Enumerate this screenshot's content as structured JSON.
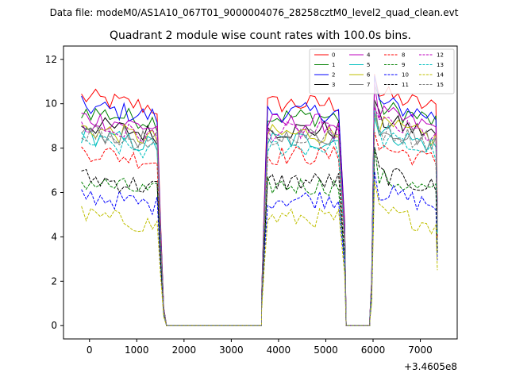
{
  "page": {
    "suptitle": "Data file: modeM0/AS1A10_067T01_9000004076_28258cztM0_level2_quad_clean.evt"
  },
  "chart_data": {
    "type": "line",
    "title": "Quadrant 2 module wise count rates with 100.0s bins.",
    "xlabel": "",
    "ylabel": "",
    "x_offset_label": "+3.4605e8",
    "xlim": [
      -550,
      7780
    ],
    "ylim": [
      -0.6,
      12.6
    ],
    "xticks": [
      0,
      1000,
      2000,
      3000,
      4000,
      5000,
      6000,
      7000
    ],
    "yticks": [
      0,
      2,
      4,
      6,
      8,
      10,
      12
    ],
    "segments": [
      {
        "x0": -170,
        "x1": 1430,
        "fall_x": [
          1500,
          1570,
          1630
        ]
      },
      {
        "x0": 3770,
        "x1": 5330,
        "rise_x": [
          3640,
          3700
        ],
        "fall_x": [
          5400,
          5430
        ]
      },
      {
        "x0": 6030,
        "x1": 7330,
        "rise_x": [
          5930,
          5970
        ]
      }
    ],
    "zero_ranges": [
      [
        1630,
        3640
      ],
      [
        5430,
        5930
      ]
    ],
    "series": [
      {
        "name": "0",
        "color": "#ff0000",
        "dashed": false,
        "base": 10.3
      },
      {
        "name": "1",
        "color": "#008000",
        "dashed": false,
        "base": 9.7
      },
      {
        "name": "2",
        "color": "#0000ff",
        "dashed": false,
        "base": 9.9
      },
      {
        "name": "3",
        "color": "#000000",
        "dashed": false,
        "base": 9.1
      },
      {
        "name": "4",
        "color": "#bf00bf",
        "dashed": false,
        "base": 9.4
      },
      {
        "name": "5",
        "color": "#00bfbf",
        "dashed": false,
        "base": 8.6
      },
      {
        "name": "6",
        "color": "#bfbf00",
        "dashed": false,
        "base": 8.9
      },
      {
        "name": "7",
        "color": "#808080",
        "dashed": false,
        "base": 8.8
      },
      {
        "name": "8",
        "color": "#ff0000",
        "dashed": true,
        "base": 7.9
      },
      {
        "name": "9",
        "color": "#008000",
        "dashed": true,
        "base": 6.5
      },
      {
        "name": "10",
        "color": "#0000ff",
        "dashed": true,
        "base": 5.9
      },
      {
        "name": "11",
        "color": "#000000",
        "dashed": true,
        "base": 6.7
      },
      {
        "name": "12",
        "color": "#bf00bf",
        "dashed": true,
        "base": 9.0
      },
      {
        "name": "13",
        "color": "#00bfbf",
        "dashed": true,
        "base": 8.3
      },
      {
        "name": "14",
        "color": "#bfbf00",
        "dashed": true,
        "base": 5.0
      },
      {
        "name": "15",
        "color": "#808080",
        "dashed": true,
        "base": 8.7
      }
    ]
  }
}
